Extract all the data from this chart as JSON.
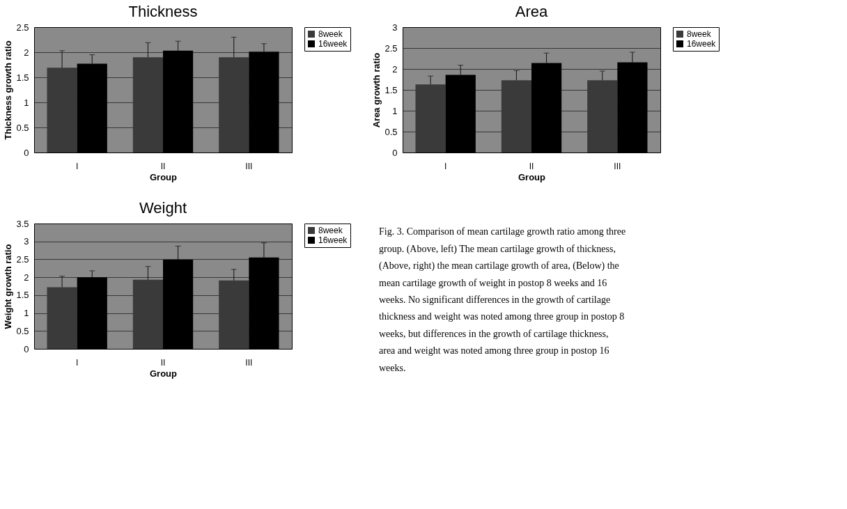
{
  "chart_data": [
    {
      "type": "bar",
      "title": "Thickness",
      "xlabel": "Group",
      "ylabel": "Thickness growth ratio",
      "categories": [
        "I",
        "II",
        "III"
      ],
      "ylim": [
        0,
        2.5
      ],
      "yticks": [
        0,
        0.5,
        1,
        1.5,
        2,
        2.5
      ],
      "grid": "y",
      "legend": "right",
      "series": [
        {
          "name": "8week",
          "color": "#3a3a3a",
          "values": [
            1.69,
            1.9,
            1.9
          ],
          "errors": [
            [
              1.69,
              2.03
            ],
            [
              1.9,
              2.19
            ],
            [
              1.9,
              2.3
            ]
          ]
        },
        {
          "name": "16week",
          "color": "#000000",
          "values": [
            1.77,
            2.03,
            2.01
          ],
          "errors": [
            [
              1.77,
              1.95
            ],
            [
              2.03,
              2.22
            ],
            [
              2.01,
              2.17
            ]
          ]
        }
      ]
    },
    {
      "type": "bar",
      "title": "Area",
      "xlabel": "Group",
      "ylabel": "Area growth ratio",
      "categories": [
        "I",
        "II",
        "III"
      ],
      "ylim": [
        0,
        3
      ],
      "yticks": [
        0,
        0.5,
        1,
        1.5,
        2,
        2.5,
        3
      ],
      "grid": "y",
      "legend": "right",
      "series": [
        {
          "name": "8week",
          "color": "#3a3a3a",
          "values": [
            1.63,
            1.73,
            1.73
          ],
          "errors": [
            [
              1.63,
              1.83
            ],
            [
              1.73,
              1.96
            ],
            [
              1.73,
              1.95
            ]
          ]
        },
        {
          "name": "16week",
          "color": "#000000",
          "values": [
            1.86,
            2.14,
            2.16
          ],
          "errors": [
            [
              1.86,
              2.09
            ],
            [
              2.14,
              2.38
            ],
            [
              2.16,
              2.4
            ]
          ]
        }
      ]
    },
    {
      "type": "bar",
      "title": "Weight",
      "xlabel": "Group",
      "ylabel": "Weight growth ratio",
      "categories": [
        "I",
        "II",
        "III"
      ],
      "ylim": [
        0,
        3.5
      ],
      "yticks": [
        0,
        0.5,
        1,
        1.5,
        2,
        2.5,
        3,
        3.5
      ],
      "grid": "y",
      "legend": "right",
      "series": [
        {
          "name": "8week",
          "color": "#3a3a3a",
          "values": [
            1.72,
            1.93,
            1.91
          ],
          "errors": [
            [
              1.72,
              2.03
            ],
            [
              1.93,
              2.3
            ],
            [
              1.91,
              2.22
            ]
          ]
        },
        {
          "name": "16week",
          "color": "#000000",
          "values": [
            2.0,
            2.49,
            2.55
          ],
          "errors": [
            [
              2.0,
              2.18
            ],
            [
              2.49,
              2.87
            ],
            [
              2.55,
              2.96
            ]
          ]
        }
      ]
    },
    {
      "type": "other",
      "annotations": [
        "Fig. 3. Comparison of mean cartilage growth ratio among three group. (Above, left) The mean cartilage growth of thickness, (Above, right) the mean cartilage growth of area, (Below) the mean cartilage growth of weight in postop 8 weeks and 16 weeks. No significant differences in the growth of cartilage thickness and weight was noted among three group in postop 8 weeks, but differences in the growth of cartilage thickness, area and weight was noted among three group in postop 16 weeks."
      ]
    }
  ]
}
